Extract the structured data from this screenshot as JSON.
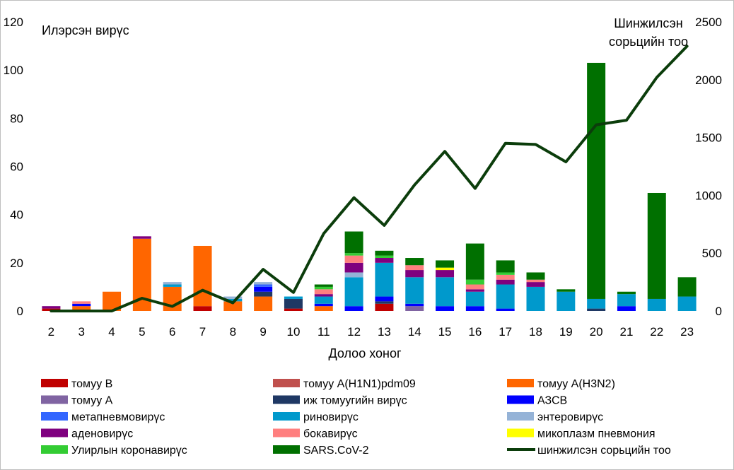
{
  "chart_data": {
    "type": "bar",
    "stacked": true,
    "title": "",
    "xlabel": "Долоо хоног",
    "ylabel": "Илэрсэн вирүс",
    "y2label_lines": [
      "Шинжилсэн",
      "сорьцийн тоо"
    ],
    "categories": [
      "2",
      "3",
      "4",
      "5",
      "6",
      "7",
      "8",
      "9",
      "10",
      "11",
      "12",
      "13",
      "14",
      "15",
      "16",
      "17",
      "18",
      "19",
      "20",
      "21",
      "22",
      "23"
    ],
    "ylim": [
      0,
      120
    ],
    "yticks": [
      0,
      20,
      40,
      60,
      80,
      100,
      120
    ],
    "y2lim": [
      0,
      2500
    ],
    "y2ticks": [
      0,
      500,
      1000,
      1500,
      2000,
      2500
    ],
    "legend_position": "bottom",
    "series": [
      {
        "name": "томуу В",
        "color": "#c00000",
        "values": [
          1,
          0,
          0,
          0,
          0,
          2,
          0,
          0,
          1,
          0,
          0,
          3,
          0,
          0,
          0,
          0,
          0,
          0,
          0,
          0,
          0,
          0
        ]
      },
      {
        "name": "томуу А(H1N1)pdm09",
        "color": "#c0504d",
        "values": [
          0,
          0,
          0,
          0,
          0,
          0,
          0,
          0,
          0,
          0,
          0,
          0,
          0,
          0,
          0,
          0,
          0,
          0,
          0,
          0,
          0,
          0
        ]
      },
      {
        "name": "томуу А(H3N2)",
        "color": "#ff6600",
        "values": [
          0,
          2,
          8,
          30,
          10,
          25,
          4,
          6,
          0,
          2,
          0,
          0,
          0,
          0,
          0,
          0,
          0,
          0,
          0,
          0,
          0,
          0
        ]
      },
      {
        "name": "томуу А",
        "color": "#8064a2",
        "values": [
          0,
          0,
          0,
          0,
          0,
          0,
          0,
          0,
          0,
          0,
          0,
          0,
          2,
          0,
          0,
          0,
          0,
          0,
          0,
          0,
          0,
          0
        ]
      },
      {
        "name": "иж томуугийн вирүс",
        "color": "#1f3864",
        "values": [
          0,
          0,
          0,
          0,
          0,
          0,
          0,
          2,
          4,
          0,
          0,
          1,
          0,
          0,
          0,
          0,
          0,
          0,
          1,
          0,
          0,
          0
        ]
      },
      {
        "name": "АЗСВ",
        "color": "#0000ff",
        "values": [
          0,
          1,
          0,
          0,
          0,
          0,
          0,
          2,
          0,
          1,
          2,
          2,
          1,
          2,
          2,
          1,
          0,
          0,
          0,
          2,
          0,
          0
        ]
      },
      {
        "name": "метапневмовирүс",
        "color": "#3366ff",
        "values": [
          0,
          0,
          0,
          0,
          0,
          0,
          0,
          1,
          0,
          0,
          0,
          0,
          0,
          0,
          0,
          0,
          0,
          0,
          0,
          0,
          0,
          0
        ]
      },
      {
        "name": "риновирүс",
        "color": "#0099cc",
        "values": [
          0,
          0,
          0,
          0,
          1,
          0,
          1,
          0,
          1,
          3,
          12,
          14,
          11,
          12,
          6,
          10,
          10,
          8,
          4,
          5,
          5,
          6
        ]
      },
      {
        "name": "энтеровирүс",
        "color": "#95b3d7",
        "values": [
          0,
          0,
          0,
          0,
          1,
          0,
          1,
          1,
          0,
          0,
          2,
          0,
          0,
          0,
          0,
          0,
          0,
          0,
          0,
          0,
          0,
          0
        ]
      },
      {
        "name": "аденовирүс",
        "color": "#7f007f",
        "values": [
          1,
          0,
          0,
          1,
          0,
          0,
          0,
          0,
          0,
          1,
          4,
          2,
          3,
          3,
          1,
          2,
          2,
          0,
          0,
          0,
          0,
          0
        ]
      },
      {
        "name": "бокавирүс",
        "color": "#ff7f7f",
        "values": [
          0,
          1,
          0,
          0,
          0,
          0,
          0,
          0,
          0,
          2,
          3,
          0,
          2,
          0,
          2,
          2,
          1,
          0,
          0,
          0,
          0,
          0
        ]
      },
      {
        "name": "микоплазм пневмония",
        "color": "#ffff00",
        "values": [
          0,
          0,
          0,
          0,
          0,
          0,
          0,
          0,
          0,
          0,
          0,
          0,
          0,
          1,
          0,
          0,
          0,
          0,
          0,
          0,
          0,
          0
        ]
      },
      {
        "name": "Улирлын коронавирүс",
        "color": "#33cc33",
        "values": [
          0,
          0,
          0,
          0,
          0,
          0,
          0,
          0,
          0,
          1,
          1,
          1,
          0,
          0,
          2,
          1,
          0,
          0,
          0,
          0,
          0,
          0
        ]
      },
      {
        "name": "SARS.CoV-2",
        "color": "#007000",
        "values": [
          0,
          0,
          0,
          0,
          0,
          0,
          0,
          0,
          0,
          1,
          9,
          2,
          3,
          3,
          15,
          5,
          3,
          1,
          98,
          1,
          44,
          8
        ]
      }
    ],
    "line_series": {
      "name": "шинжилсэн сорьцийн тоо",
      "color": "#0b3d0b",
      "axis": "right",
      "values": [
        0,
        0,
        0,
        110,
        40,
        180,
        70,
        360,
        160,
        670,
        980,
        740,
        1090,
        1380,
        1060,
        1450,
        1440,
        1290,
        1610,
        1650,
        2020,
        2290
      ]
    }
  }
}
